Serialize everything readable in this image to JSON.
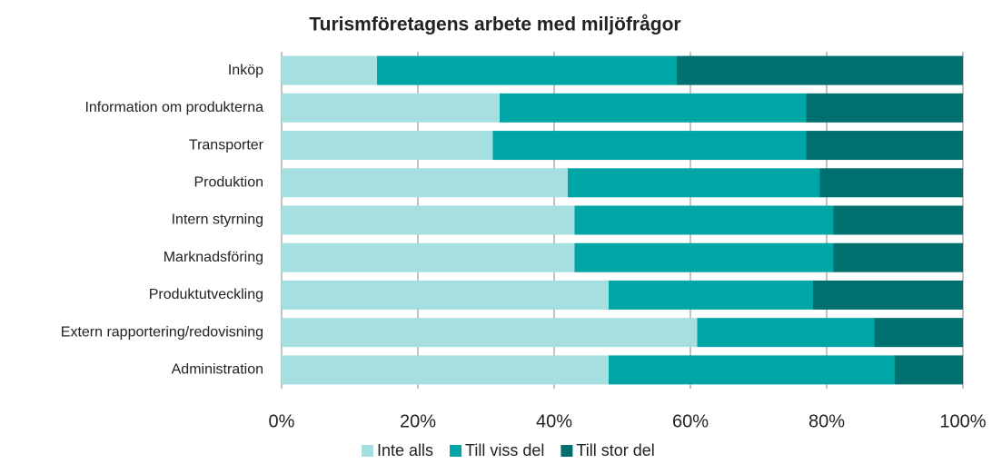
{
  "chart_data": {
    "type": "stacked_bar_horizontal",
    "title": "Turismföretagens arbete med miljöfrågor",
    "categories": [
      "Inköp",
      "Information om produkterna",
      "Transporter",
      "Produktion",
      "Intern styrning",
      "Marknadsföring",
      "Produktutveckling",
      "Extern rapportering/redovisning",
      "Administration"
    ],
    "series": [
      {
        "name": "Inte alls",
        "color": "#a6dfe0",
        "values": [
          14,
          32,
          31,
          42,
          43,
          43,
          48,
          61,
          48
        ]
      },
      {
        "name": "Till viss del",
        "color": "#00a5a5",
        "values": [
          44,
          45,
          46,
          37,
          38,
          38,
          30,
          26,
          42
        ]
      },
      {
        "name": "Till stor del",
        "color": "#006f6f",
        "values": [
          42,
          23,
          23,
          21,
          19,
          19,
          22,
          13,
          10
        ]
      }
    ],
    "xlim": [
      0,
      100
    ],
    "xticks": [
      {
        "value": 0,
        "label": "0%"
      },
      {
        "value": 20,
        "label": "20%"
      },
      {
        "value": 40,
        "label": "40%"
      },
      {
        "value": 60,
        "label": "60%"
      },
      {
        "value": 80,
        "label": "80%"
      },
      {
        "value": 100,
        "label": "100%"
      }
    ],
    "grid": true,
    "legend": "bottom"
  }
}
